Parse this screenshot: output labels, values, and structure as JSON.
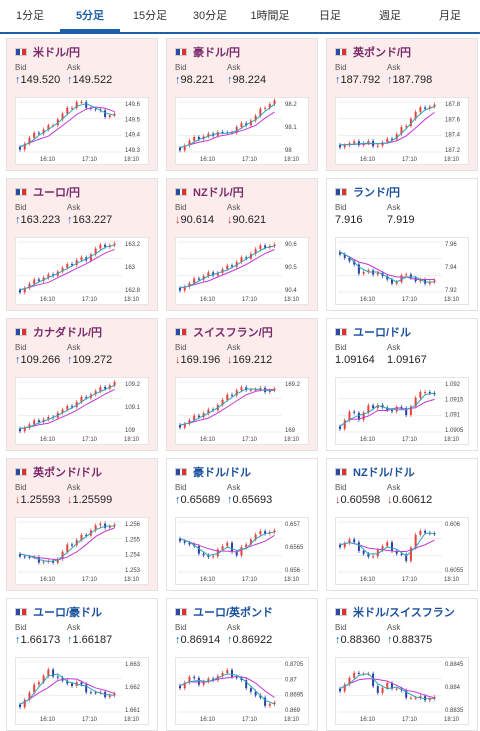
{
  "tabs": [
    {
      "label": "1分足",
      "active": false
    },
    {
      "label": "5分足",
      "active": true
    },
    {
      "label": "15分足",
      "active": false
    },
    {
      "label": "30分足",
      "active": false
    },
    {
      "label": "1時間足",
      "active": false
    },
    {
      "label": "日足",
      "active": false
    },
    {
      "label": "週足",
      "active": false
    },
    {
      "label": "月足",
      "active": false
    }
  ],
  "labels": {
    "bid": "Bid",
    "ask": "Ask"
  },
  "colors": {
    "up": "#1a6fc4",
    "down": "#c0392b",
    "candle_up": "#e8413a",
    "candle_down": "#2a3ea8",
    "ma1": "#c23bd6",
    "ma2": "#2aa7b8"
  },
  "cards": [
    {
      "title": "米ドル/円",
      "bg": "pink",
      "bid": "149.520",
      "ask": "149.522",
      "bid_dir": "up",
      "ask_dir": "up",
      "x_ticks": [
        "16:10",
        "17:10",
        "18:10"
      ],
      "y_ticks": [
        "149.6",
        "149.5",
        "149.4",
        "149.3"
      ]
    },
    {
      "title": "豪ドル/円",
      "bg": "pink",
      "bid": "98.221",
      "ask": "98.224",
      "bid_dir": "up",
      "ask_dir": "up",
      "x_ticks": [
        "16:10",
        "17:10",
        "18:10"
      ],
      "y_ticks": [
        "98.2",
        "98.1",
        "98"
      ]
    },
    {
      "title": "英ポンド/円",
      "bg": "pink",
      "bid": "187.792",
      "ask": "187.798",
      "bid_dir": "up",
      "ask_dir": "up",
      "x_ticks": [
        "16:10",
        "17:10",
        "18:10"
      ],
      "y_ticks": [
        "187.8",
        "187.6",
        "187.4",
        "187.2"
      ]
    },
    {
      "title": "ユーロ/円",
      "bg": "pink",
      "bid": "163.223",
      "ask": "163.227",
      "bid_dir": "up",
      "ask_dir": "up",
      "x_ticks": [
        "16:10",
        "17:10",
        "18:10"
      ],
      "y_ticks": [
        "163.2",
        "163",
        "162.8"
      ]
    },
    {
      "title": "NZドル/円",
      "bg": "pink",
      "bid": "90.614",
      "ask": "90.621",
      "bid_dir": "down",
      "ask_dir": "down",
      "x_ticks": [
        "16:10",
        "17:10",
        "18:10"
      ],
      "y_ticks": [
        "90.6",
        "90.5",
        "90.4"
      ]
    },
    {
      "title": "ランド/円",
      "bg": "white",
      "bid": "7.916",
      "ask": "7.919",
      "bid_dir": "none",
      "ask_dir": "none",
      "x_ticks": [
        "16:10",
        "17:10",
        "18:10"
      ],
      "y_ticks": [
        "7.96",
        "7.94",
        "7.92"
      ]
    },
    {
      "title": "カナダドル/円",
      "bg": "pink",
      "bid": "109.266",
      "ask": "109.272",
      "bid_dir": "up",
      "ask_dir": "up",
      "x_ticks": [
        "16:10",
        "17:10",
        "18:10"
      ],
      "y_ticks": [
        "109.2",
        "109.1",
        "109"
      ]
    },
    {
      "title": "スイスフラン/円",
      "bg": "pink",
      "bid": "169.196",
      "ask": "169.212",
      "bid_dir": "down",
      "ask_dir": "down",
      "x_ticks": [
        "16:10",
        "17:10",
        "18:10"
      ],
      "y_ticks": [
        "169.2",
        "169"
      ]
    },
    {
      "title": "ユーロ/ドル",
      "bg": "white",
      "bid": "1.09164",
      "ask": "1.09167",
      "bid_dir": "none",
      "ask_dir": "none",
      "x_ticks": [
        "16:10",
        "17:10",
        "18:10"
      ],
      "y_ticks": [
        "1.092",
        "1.0915",
        "1.091",
        "1.0905"
      ]
    },
    {
      "title": "英ポンド/ドル",
      "bg": "pink",
      "bid": "1.25593",
      "ask": "1.25599",
      "bid_dir": "down",
      "ask_dir": "down",
      "x_ticks": [
        "16:10",
        "17:10",
        "18:10"
      ],
      "y_ticks": [
        "1.256",
        "1.255",
        "1.254",
        "1.253"
      ]
    },
    {
      "title": "豪ドル/ドル",
      "bg": "white",
      "bid": "0.65689",
      "ask": "0.65693",
      "bid_dir": "up",
      "ask_dir": "up",
      "x_ticks": [
        "16:10",
        "17:10",
        "18:10"
      ],
      "y_ticks": [
        "0.657",
        "0.6565",
        "0.656"
      ]
    },
    {
      "title": "NZドル/ドル",
      "bg": "white",
      "bid": "0.60598",
      "ask": "0.60612",
      "bid_dir": "down",
      "ask_dir": "down",
      "x_ticks": [
        "16:10",
        "17:10",
        "18:10"
      ],
      "y_ticks": [
        "0.606",
        "0.6055"
      ]
    },
    {
      "title": "ユーロ/豪ドル",
      "bg": "white",
      "bid": "1.66173",
      "ask": "1.66187",
      "bid_dir": "up",
      "ask_dir": "up",
      "x_ticks": [
        "16:10",
        "17:10",
        "18:10"
      ],
      "y_ticks": [
        "1.663",
        "1.662",
        "1.661"
      ]
    },
    {
      "title": "ユーロ/英ポンド",
      "bg": "white",
      "bid": "0.86914",
      "ask": "0.86922",
      "bid_dir": "up",
      "ask_dir": "up",
      "x_ticks": [
        "16:10",
        "17:10",
        "18:10"
      ],
      "y_ticks": [
        "0.8705",
        "0.87",
        "0.8695",
        "0.869"
      ]
    },
    {
      "title": "米ドル/スイスフラン",
      "bg": "white",
      "bid": "0.88360",
      "ask": "0.88375",
      "bid_dir": "up",
      "ask_dir": "up",
      "x_ticks": [
        "16:10",
        "17:10",
        "18:10"
      ],
      "y_ticks": [
        "0.8845",
        "0.884",
        "0.8835"
      ]
    }
  ],
  "chart_data": [
    {
      "type": "line",
      "series": [
        {
          "values": [
            149.33,
            149.38,
            149.42,
            149.45,
            149.5,
            149.55,
            149.6,
            149.58,
            149.55,
            149.52,
            149.52
          ]
        }
      ],
      "ylim": [
        149.3,
        149.6
      ]
    },
    {
      "type": "line",
      "series": [
        {
          "values": [
            98.0,
            98.03,
            98.05,
            98.06,
            98.08,
            98.06,
            98.1,
            98.12,
            98.15,
            98.2,
            98.22
          ]
        }
      ],
      "ylim": [
        97.98,
        98.22
      ]
    },
    {
      "type": "line",
      "series": [
        {
          "values": [
            187.25,
            187.26,
            187.27,
            187.28,
            187.25,
            187.3,
            187.4,
            187.55,
            187.7,
            187.78,
            187.79
          ]
        }
      ],
      "ylim": [
        187.15,
        187.85
      ]
    },
    {
      "type": "line",
      "series": [
        {
          "values": [
            162.8,
            162.85,
            162.9,
            162.93,
            162.98,
            163.02,
            163.08,
            163.1,
            163.18,
            163.22,
            163.22
          ]
        }
      ],
      "ylim": [
        162.78,
        163.25
      ]
    },
    {
      "type": "line",
      "series": [
        {
          "values": [
            90.4,
            90.42,
            90.45,
            90.47,
            90.48,
            90.5,
            90.53,
            90.56,
            90.59,
            90.61,
            90.61
          ]
        }
      ],
      "ylim": [
        90.38,
        90.63
      ]
    },
    {
      "type": "line",
      "series": [
        {
          "values": [
            7.95,
            7.94,
            7.93,
            7.93,
            7.93,
            7.92,
            7.92,
            7.93,
            7.92,
            7.92,
            7.92
          ]
        }
      ],
      "ylim": [
        7.91,
        7.96
      ]
    },
    {
      "type": "line",
      "series": [
        {
          "values": [
            109.0,
            109.02,
            109.05,
            109.06,
            109.1,
            109.12,
            109.16,
            109.2,
            109.22,
            109.25,
            109.27
          ]
        }
      ],
      "ylim": [
        108.98,
        109.28
      ]
    },
    {
      "type": "line",
      "series": [
        {
          "values": [
            168.95,
            168.98,
            169.02,
            169.05,
            169.1,
            169.15,
            169.2,
            169.22,
            169.2,
            169.2,
            169.2
          ]
        }
      ],
      "ylim": [
        168.9,
        169.26
      ]
    },
    {
      "type": "line",
      "series": [
        {
          "values": [
            1.0905,
            1.091,
            1.0908,
            1.0912,
            1.0913,
            1.091,
            1.0912,
            1.091,
            1.0915,
            1.0918,
            1.0916
          ]
        }
      ],
      "ylim": [
        1.0903,
        1.0921
      ]
    },
    {
      "type": "line",
      "series": [
        {
          "values": [
            1.254,
            1.2537,
            1.2535,
            1.2534,
            1.2537,
            1.2545,
            1.255,
            1.2555,
            1.256,
            1.256,
            1.256
          ]
        }
      ],
      "ylim": [
        1.2527,
        1.2563
      ]
    },
    {
      "type": "line",
      "series": [
        {
          "values": [
            0.6567,
            0.6565,
            0.6563,
            0.6561,
            0.6564,
            0.6565,
            0.6562,
            0.6566,
            0.6568,
            0.6569,
            0.6569
          ]
        }
      ],
      "ylim": [
        0.6557,
        0.6572
      ]
    },
    {
      "type": "line",
      "series": [
        {
          "values": [
            0.6058,
            0.6059,
            0.6057,
            0.6055,
            0.6057,
            0.6058,
            0.6056,
            0.6055,
            0.606,
            0.6061,
            0.606
          ]
        }
      ],
      "ylim": [
        0.6052,
        0.6063
      ]
    },
    {
      "type": "line",
      "series": [
        {
          "values": [
            1.6612,
            1.6618,
            1.6625,
            1.663,
            1.6627,
            1.6622,
            1.6624,
            1.662,
            1.6618,
            1.6617,
            1.6617
          ]
        }
      ],
      "ylim": [
        1.6608,
        1.6635
      ]
    },
    {
      "type": "line",
      "series": [
        {
          "values": [
            0.8698,
            0.8701,
            0.8699,
            0.87,
            0.8702,
            0.8703,
            0.8701,
            0.8698,
            0.8694,
            0.8691,
            0.8691
          ]
        }
      ],
      "ylim": [
        0.8688,
        0.8707
      ]
    },
    {
      "type": "line",
      "series": [
        {
          "values": [
            0.8839,
            0.8842,
            0.8844,
            0.8843,
            0.8838,
            0.884,
            0.8839,
            0.8837,
            0.8836,
            0.8836,
            0.8836
          ]
        }
      ],
      "ylim": [
        0.8832,
        0.8847
      ]
    }
  ]
}
